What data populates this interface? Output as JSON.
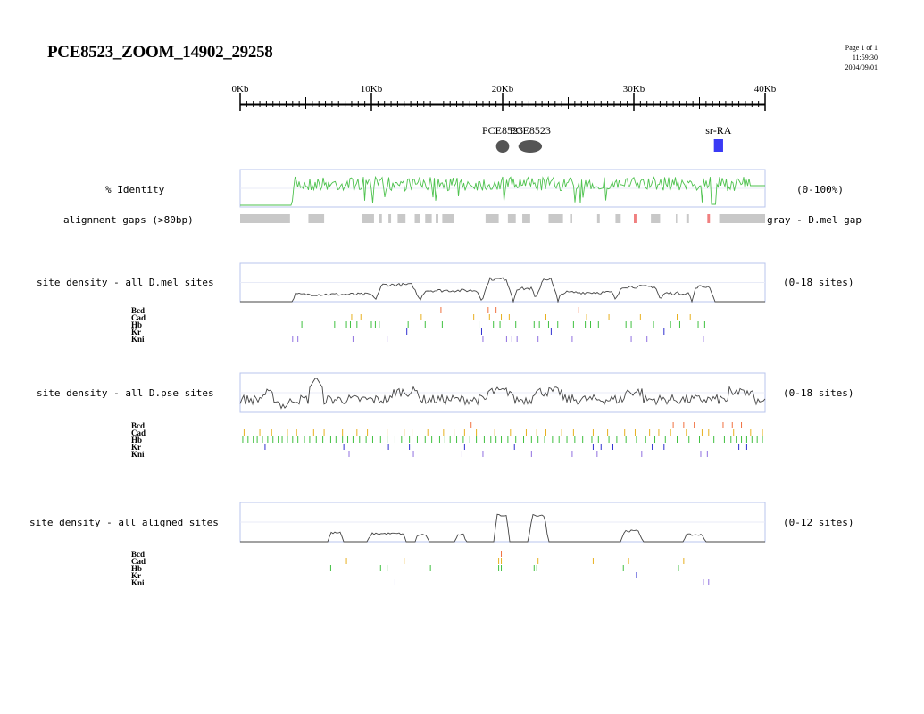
{
  "title": "PCE8523_ZOOM_14902_29258",
  "meta": {
    "page": "Page 1 of 1",
    "time": "11:59:30",
    "date": "2004/09/01"
  },
  "ruler": {
    "labels": [
      "0Kb",
      "10Kb",
      "20Kb",
      "30Kb",
      "40Kb"
    ],
    "min_kb": 0,
    "max_kb": 40
  },
  "features": [
    {
      "label": "PCE8523",
      "shape": "ellipse",
      "color": "#555555",
      "start_kb": 19.5,
      "end_kb": 20.5
    },
    {
      "label": "PCE8523",
      "shape": "ellipse",
      "color": "#555555",
      "start_kb": 21.2,
      "end_kb": 23.0
    },
    {
      "label": "sr-RA",
      "shape": "box",
      "color": "#3a3af5",
      "start_kb": 36.1,
      "end_kb": 36.8
    }
  ],
  "identity": {
    "label": "% Identity",
    "range": "(0-100%)",
    "color": "#4ec24e"
  },
  "gaps": {
    "label": "alignment gaps (>80bp)",
    "legend": "gray - D.mel gap",
    "gray_kb": [
      [
        0,
        3.8
      ],
      [
        5.2,
        6.4
      ],
      [
        9.3,
        10.2
      ],
      [
        10.6,
        10.8
      ],
      [
        11.3,
        11.5
      ],
      [
        12,
        12.6
      ],
      [
        13.3,
        13.7
      ],
      [
        14.1,
        14.6
      ],
      [
        14.9,
        15.1
      ],
      [
        15.4,
        16.3
      ],
      [
        18.7,
        19.7
      ],
      [
        20.4,
        21.0
      ],
      [
        21.5,
        22.1
      ],
      [
        23.5,
        24.6
      ],
      [
        25.2,
        25.3
      ],
      [
        27.2,
        27.4
      ],
      [
        28.6,
        29.0
      ],
      [
        31.3,
        32.0
      ],
      [
        33.2,
        33.3
      ],
      [
        34.0,
        34.2
      ],
      [
        36.5,
        40
      ]
    ],
    "red_kb": [
      [
        30.0,
        30.2
      ],
      [
        35.6,
        35.8
      ]
    ]
  },
  "blocks": [
    {
      "label": "site density - all D.mel sites",
      "range": "(0-18 sites)",
      "factors": [
        "Bcd",
        "Cad",
        "Hb",
        "Kr",
        "Kni"
      ],
      "ticks_kb": {
        "Bcd": [
          15.3,
          18.9,
          19.5,
          25.8
        ],
        "Cad": [
          8.5,
          9.2,
          13.8,
          17.8,
          19.0,
          19.9,
          20.5,
          23.3,
          26.4,
          28.1,
          30.5,
          33.3,
          34.3
        ],
        "Hb": [
          4.7,
          7.2,
          8.1,
          8.4,
          8.9,
          10.0,
          10.3,
          10.6,
          12.8,
          14.1,
          15.4,
          18.2,
          19.3,
          19.8,
          21.0,
          22.4,
          22.8,
          23.5,
          24.2,
          25.4,
          26.3,
          26.7,
          27.3,
          29.4,
          29.8,
          31.5,
          32.8,
          33.5,
          34.9,
          35.4
        ],
        "Kr": [
          12.7,
          18.4,
          23.7,
          32.3
        ],
        "Kni": [
          4.0,
          4.4,
          8.6,
          11.2,
          18.5,
          20.3,
          20.7,
          21.1,
          22.7,
          25.3,
          29.8,
          31.0,
          35.3
        ]
      }
    },
    {
      "label": "site density - all D.pse sites",
      "range": "(0-18 sites)",
      "factors": [
        "Bcd",
        "Cad",
        "Hb",
        "Kr",
        "Kni"
      ],
      "ticks_kb": {
        "Bcd": [
          17.6,
          33.0,
          33.8,
          34.6,
          36.8,
          37.5,
          38.2
        ],
        "Cad": [
          0.3,
          1.5,
          2.4,
          3.6,
          4.3,
          5.6,
          6.4,
          7.8,
          8.9,
          9.7,
          11.2,
          12.5,
          13.1,
          14.3,
          15.5,
          16.3,
          17.1,
          18.0,
          19.4,
          20.6,
          21.8,
          22.6,
          23.3,
          24.5,
          25.4,
          26.9,
          28.0,
          29.3,
          30.1,
          31.2,
          31.9,
          32.8,
          34.0,
          35.2,
          35.7,
          37.6,
          38.9,
          39.8
        ],
        "Hb": [
          0.2,
          0.6,
          1.0,
          1.3,
          1.7,
          2.1,
          2.5,
          2.9,
          3.2,
          3.6,
          4.0,
          4.4,
          4.9,
          5.3,
          5.8,
          6.3,
          6.9,
          7.3,
          7.8,
          8.2,
          8.6,
          9.1,
          9.6,
          10.1,
          10.7,
          11.2,
          11.8,
          12.3,
          12.9,
          13.5,
          14.1,
          14.6,
          15.2,
          15.6,
          16.0,
          16.5,
          17.0,
          17.5,
          18.0,
          18.6,
          19.1,
          19.5,
          19.9,
          20.4,
          21.0,
          21.6,
          22.2,
          22.7,
          23.2,
          23.8,
          24.3,
          24.9,
          25.5,
          26.1,
          26.8,
          27.3,
          28.1,
          28.7,
          29.4,
          30.2,
          30.9,
          31.6,
          32.4,
          33.3,
          34.2,
          35.0,
          36.1,
          36.9,
          37.4,
          37.8,
          38.2,
          38.6,
          39.0,
          39.4,
          39.8
        ],
        "Kr": [
          1.9,
          7.9,
          11.3,
          12.9,
          17.1,
          20.9,
          26.9,
          27.5,
          28.4,
          31.4,
          32.3,
          38.0,
          38.6
        ],
        "Kni": [
          8.3,
          13.2,
          16.9,
          18.5,
          22.2,
          25.3,
          27.2,
          30.6,
          35.1,
          35.6
        ]
      }
    },
    {
      "label": "site density - all aligned sites",
      "range": "(0-12 sites)",
      "factors": [
        "Bcd",
        "Cad",
        "Hb",
        "Kr",
        "Kni"
      ],
      "ticks_kb": {
        "Bcd": [
          19.9
        ],
        "Cad": [
          8.1,
          12.5,
          19.7,
          19.9,
          22.7,
          26.9,
          29.6,
          33.8
        ],
        "Hb": [
          6.9,
          10.7,
          11.2,
          14.5,
          19.7,
          19.9,
          22.4,
          22.6,
          29.2,
          33.4
        ],
        "Kr": [
          30.2
        ],
        "Kni": [
          11.8,
          35.3,
          35.7
        ]
      }
    }
  ]
}
